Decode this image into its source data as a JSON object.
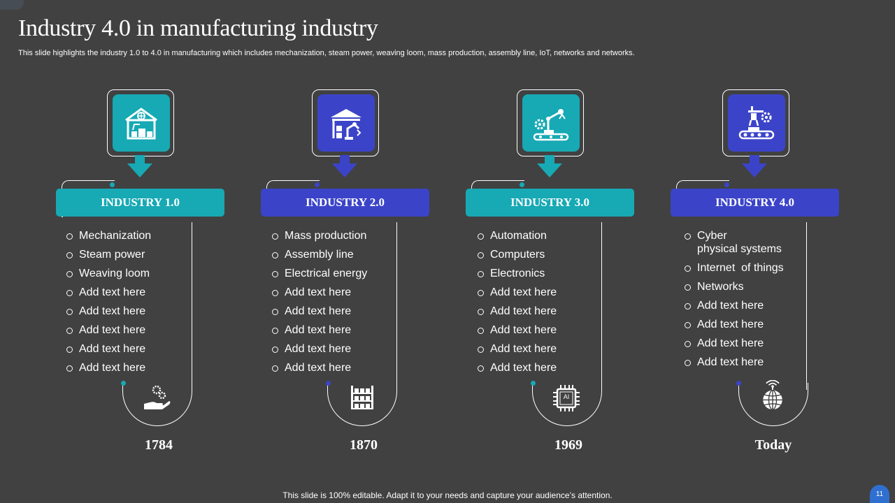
{
  "slide": {
    "title": "Industry 4.0 in manufacturing industry",
    "subtitle": "This slide highlights the industry 1.0 to  4.0 in manufacturing which includes mechanization, steam power, weaving loom, mass production, assembly line, IoT, networks and networks.",
    "footer": "This slide is 100% editable. Adapt it to your needs and capture your audience’s attention.",
    "page_number": "11"
  },
  "colors": {
    "teal": "#17a9b4",
    "indigo": "#3b44c8",
    "background": "#414141"
  },
  "columns": [
    {
      "header": "INDUSTRY 1.0",
      "year": "1784",
      "icon": "factory-robot-icon",
      "bottom_icon": "hand-gears-icon",
      "items": [
        "Mechanization",
        "Steam power",
        "Weaving loom",
        "Add text here",
        "Add text here",
        "Add text here",
        "Add text here",
        "Add text here"
      ]
    },
    {
      "header": "INDUSTRY 2.0",
      "year": "1870",
      "icon": "warehouse-robot-arm-icon",
      "bottom_icon": "shelving-rack-icon",
      "items": [
        "Mass production",
        "Assembly line",
        "Electrical energy",
        "Add text here",
        "Add text here",
        "Add text here",
        "Add text here",
        "Add text here"
      ]
    },
    {
      "header": "INDUSTRY 3.0",
      "year": "1969",
      "icon": "robot-arm-conveyor-icon",
      "bottom_icon": "ai-chip-icon",
      "ai_label": "AI",
      "items": [
        "Automation",
        "Computers",
        "Electronics",
        "Add text here",
        "Add text here",
        "Add text here",
        "Add text here",
        "Add text here"
      ]
    },
    {
      "header": "INDUSTRY 4.0",
      "year": "Today",
      "icon": "automated-conveyor-icon",
      "bottom_icon": "wireless-globe-icon",
      "items": [
        "Cyber\nphysical systems",
        "Internet  of things",
        "Networks",
        "Add text here",
        "Add text here",
        "Add text here",
        "Add text here"
      ]
    }
  ]
}
